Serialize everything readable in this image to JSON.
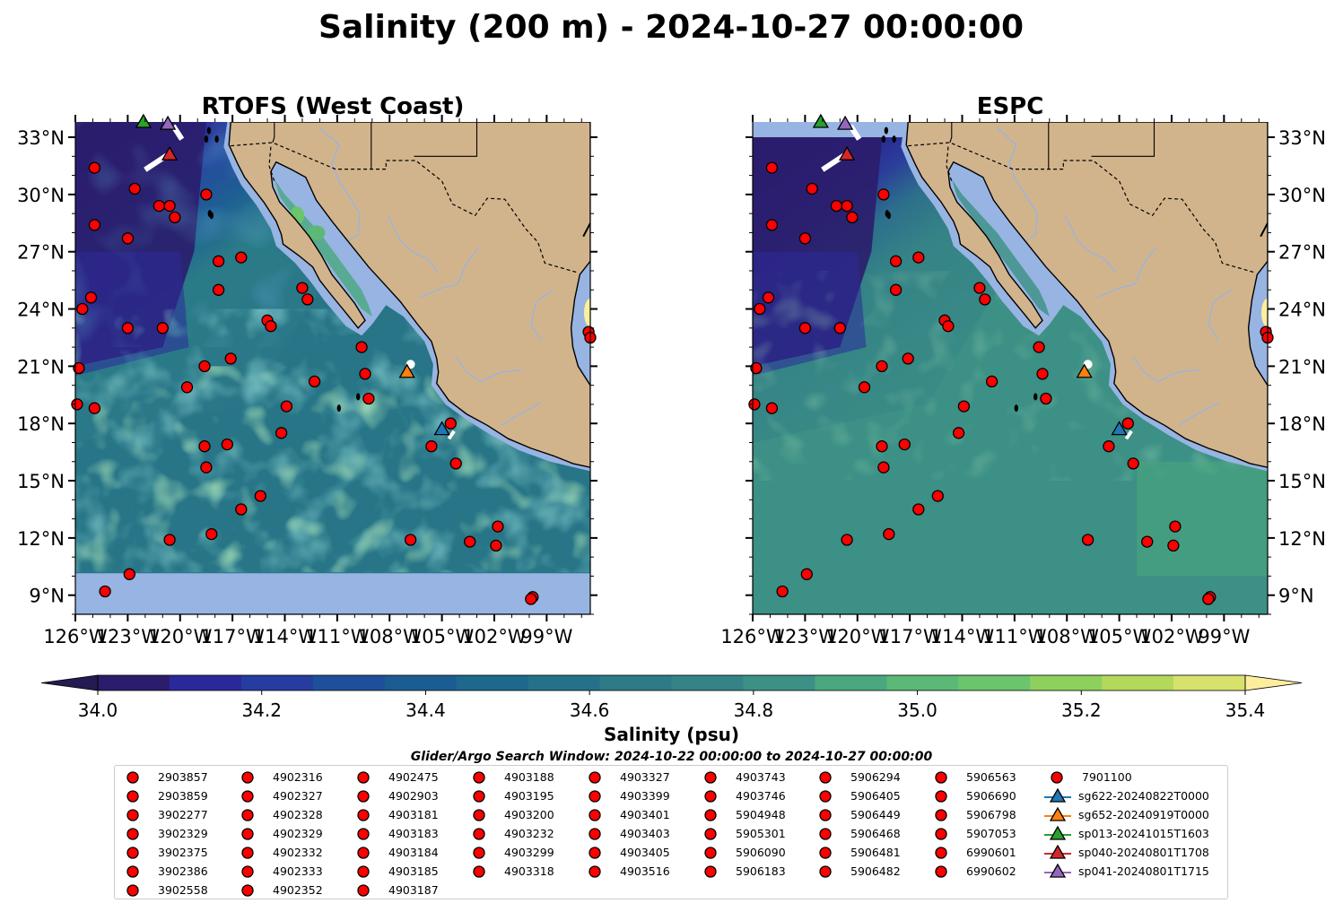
{
  "figure": {
    "title": "Salinity (200 m) - 2024-10-27 00:00:00"
  },
  "colors": {
    "ocean_mask": "#97b4e2",
    "land": "#d2b48c",
    "river": "#97b4e2",
    "float_marker": "#ff0000",
    "glider_colors": [
      "#1f77b4",
      "#ff7f0e",
      "#2ca02c",
      "#d62728",
      "#9467bd"
    ]
  },
  "chart_data": [
    {
      "type": "heatmap",
      "name": "rtofs",
      "title": "RTOFS (West Coast)",
      "x_ticks": [
        "126°W",
        "123°W",
        "120°W",
        "117°W",
        "114°W",
        "111°W",
        "108°W",
        "105°W",
        "102°W",
        "99°W"
      ],
      "y_ticks": [
        "33°N",
        "30°N",
        "27°N",
        "24°N",
        "21°N",
        "18°N",
        "15°N",
        "12°N",
        "9°N"
      ],
      "xlim": [
        -126,
        -96.5
      ],
      "ylim": [
        8,
        33.8
      ],
      "y_tick_side": "left"
    },
    {
      "type": "heatmap",
      "name": "espc",
      "title": "ESPC",
      "x_ticks": [
        "126°W",
        "123°W",
        "120°W",
        "117°W",
        "114°W",
        "111°W",
        "108°W",
        "105°W",
        "102°W",
        "99°W"
      ],
      "y_ticks": [
        "33°N",
        "30°N",
        "27°N",
        "24°N",
        "21°N",
        "18°N",
        "15°N",
        "12°N",
        "9°N"
      ],
      "xlim": [
        -126,
        -96.5
      ],
      "ylim": [
        8,
        33.8
      ],
      "y_tick_side": "right"
    }
  ],
  "floats": [
    {
      "lon": -124.9,
      "lat": 31.4
    },
    {
      "lon": -122.6,
      "lat": 30.3
    },
    {
      "lon": -121.2,
      "lat": 29.4
    },
    {
      "lon": -120.6,
      "lat": 29.4
    },
    {
      "lon": -120.3,
      "lat": 28.8
    },
    {
      "lon": -118.5,
      "lat": 30.0
    },
    {
      "lon": -124.9,
      "lat": 28.4
    },
    {
      "lon": -123.0,
      "lat": 27.7
    },
    {
      "lon": -117.8,
      "lat": 26.5
    },
    {
      "lon": -116.5,
      "lat": 26.7
    },
    {
      "lon": -117.8,
      "lat": 25.0
    },
    {
      "lon": -125.1,
      "lat": 24.6
    },
    {
      "lon": -125.6,
      "lat": 24.0
    },
    {
      "lon": -123.0,
      "lat": 23.0
    },
    {
      "lon": -121.0,
      "lat": 23.0
    },
    {
      "lon": -113.0,
      "lat": 25.1
    },
    {
      "lon": -112.7,
      "lat": 24.5
    },
    {
      "lon": -115.0,
      "lat": 23.4
    },
    {
      "lon": -114.8,
      "lat": 23.1
    },
    {
      "lon": -109.6,
      "lat": 22.0
    },
    {
      "lon": -125.8,
      "lat": 20.9
    },
    {
      "lon": -118.6,
      "lat": 21.0
    },
    {
      "lon": -117.1,
      "lat": 21.4
    },
    {
      "lon": -119.6,
      "lat": 19.9
    },
    {
      "lon": -112.3,
      "lat": 20.2
    },
    {
      "lon": -109.4,
      "lat": 20.6
    },
    {
      "lon": -109.2,
      "lat": 19.3
    },
    {
      "lon": -125.9,
      "lat": 19.0
    },
    {
      "lon": -124.9,
      "lat": 18.8
    },
    {
      "lon": -113.9,
      "lat": 18.9
    },
    {
      "lon": -114.2,
      "lat": 17.5
    },
    {
      "lon": -118.6,
      "lat": 16.8
    },
    {
      "lon": -117.3,
      "lat": 16.9
    },
    {
      "lon": -118.5,
      "lat": 15.7
    },
    {
      "lon": -104.5,
      "lat": 18.0
    },
    {
      "lon": -105.6,
      "lat": 16.8
    },
    {
      "lon": -104.2,
      "lat": 15.9
    },
    {
      "lon": -116.5,
      "lat": 13.5
    },
    {
      "lon": -115.4,
      "lat": 14.2
    },
    {
      "lon": -118.2,
      "lat": 12.2
    },
    {
      "lon": -120.6,
      "lat": 11.9
    },
    {
      "lon": -106.8,
      "lat": 11.9
    },
    {
      "lon": -103.4,
      "lat": 11.8
    },
    {
      "lon": -101.9,
      "lat": 11.6
    },
    {
      "lon": -101.8,
      "lat": 12.6
    },
    {
      "lon": -122.9,
      "lat": 10.1
    },
    {
      "lon": -124.3,
      "lat": 9.2
    },
    {
      "lon": -99.8,
      "lat": 8.9
    },
    {
      "lon": -99.9,
      "lat": 8.8
    },
    {
      "lon": -96.6,
      "lat": 22.8
    },
    {
      "lon": -96.5,
      "lat": 22.5
    }
  ],
  "gliders": [
    {
      "lon": -105.0,
      "lat": 17.7,
      "color": "#1f77b4"
    },
    {
      "lon": -107.0,
      "lat": 20.7,
      "color": "#ff7f0e"
    },
    {
      "lon": -122.1,
      "lat": 33.8,
      "color": "#2ca02c"
    },
    {
      "lon": -120.6,
      "lat": 32.1,
      "color": "#d62728"
    },
    {
      "lon": -120.7,
      "lat": 33.7,
      "color": "#9467bd"
    }
  ],
  "colorbar": {
    "min": 34.0,
    "max": 35.4,
    "step": 0.1,
    "ticks": [
      "34.0",
      "34.2",
      "34.4",
      "34.6",
      "34.8",
      "35.0",
      "35.2",
      "35.4"
    ],
    "colors": [
      "#2b1d6b",
      "#2b299a",
      "#263c9f",
      "#1e4f9a",
      "#1b5d92",
      "#1e688c",
      "#257189",
      "#2e7b87",
      "#358386",
      "#3c9085",
      "#4aa87e",
      "#5cb877",
      "#6cc56c",
      "#8ed05d",
      "#b3d85a",
      "#d7e26d"
    ],
    "under_color": "#241b52",
    "over_color": "#fdee9e",
    "label": "Salinity (psu)"
  },
  "legend": {
    "title": "Glider/Argo Search Window: 2024-10-22 00:00:00 to 2024-10-27 00:00:00",
    "columns": [
      [
        "2903857",
        "2903859",
        "3902277",
        "3902329",
        "3902375",
        "3902386",
        "3902558"
      ],
      [
        "4902316",
        "4902327",
        "4902328",
        "4902329",
        "4902332",
        "4902333",
        "4902352"
      ],
      [
        "4902475",
        "4902903",
        "4903181",
        "4903183",
        "4903184",
        "4903185",
        "4903187"
      ],
      [
        "4903188",
        "4903195",
        "4903200",
        "4903232",
        "4903299",
        "4903318"
      ],
      [
        "4903327",
        "4903399",
        "4903401",
        "4903403",
        "4903405",
        "4903516"
      ],
      [
        "4903743",
        "4903746",
        "5904948",
        "5905301",
        "5906090",
        "5906183"
      ],
      [
        "5906294",
        "5906405",
        "5906449",
        "5906468",
        "5906481",
        "5906482"
      ],
      [
        "5906563",
        "5906690",
        "5906798",
        "5907053",
        "6990601",
        "6990602"
      ],
      [
        "7901100"
      ]
    ],
    "glider_entries": [
      {
        "label": "sg622-20240822T0000",
        "color": "#1f77b4"
      },
      {
        "label": "sg652-20240919T0000",
        "color": "#ff7f0e"
      },
      {
        "label": "sp013-20241015T1603",
        "color": "#2ca02c"
      },
      {
        "label": "sp040-20240801T1708",
        "color": "#d62728"
      },
      {
        "label": "sp041-20240801T1715",
        "color": "#9467bd"
      }
    ]
  }
}
